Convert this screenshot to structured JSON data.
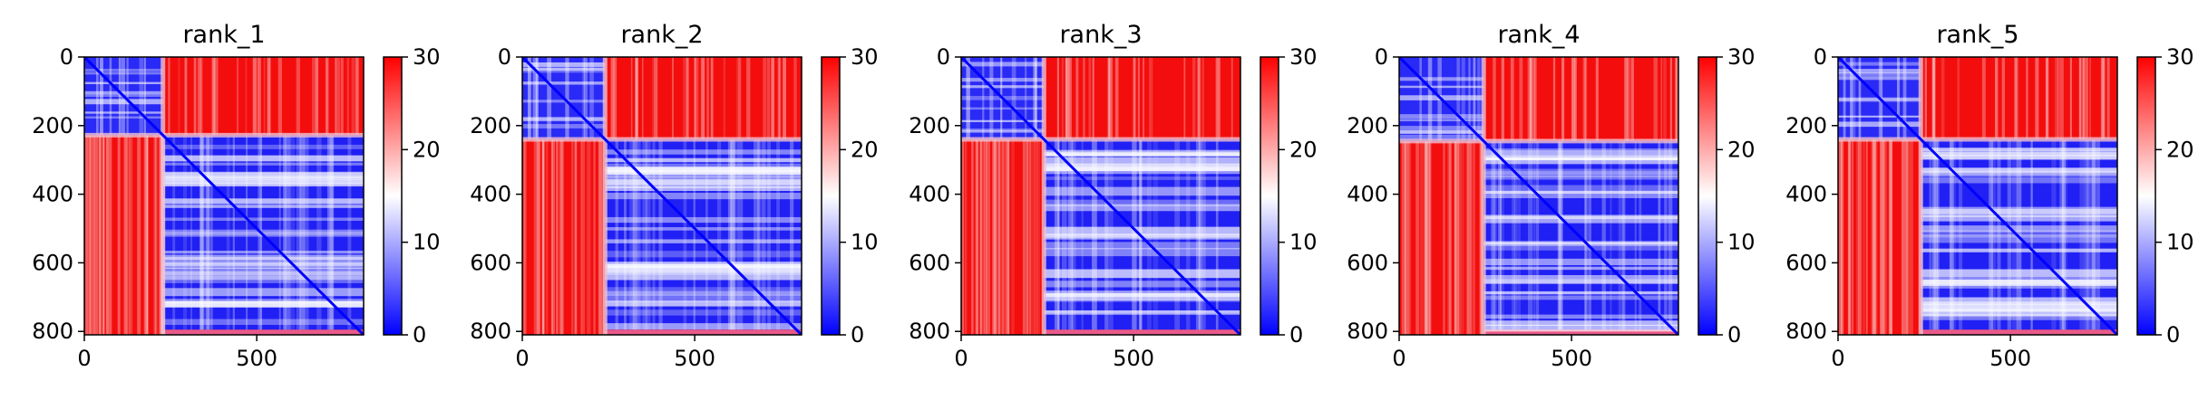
{
  "chart_data": [
    {
      "type": "heatmap",
      "title": "rank_1",
      "xlim": [
        0,
        810
      ],
      "ylim": [
        810,
        0
      ],
      "xticks": [
        0,
        500
      ],
      "yticks": [
        0,
        200,
        400,
        600,
        800
      ],
      "colorbar": {
        "range": [
          0,
          30
        ],
        "ticks": [
          0,
          10,
          20,
          30
        ],
        "colormap": [
          "#0000ff",
          "#ffffff",
          "#ff0000"
        ]
      },
      "block_boundary": 228,
      "lower_right_rows_end": 795,
      "blocks": {
        "upper_left": "low",
        "lower_right": "low",
        "off_diagonal": "high"
      }
    },
    {
      "type": "heatmap",
      "title": "rank_2",
      "xlim": [
        0,
        810
      ],
      "ylim": [
        810,
        0
      ],
      "xticks": [
        0,
        500
      ],
      "yticks": [
        0,
        200,
        400,
        600,
        800
      ],
      "colorbar": {
        "range": [
          0,
          30
        ],
        "ticks": [
          0,
          10,
          20,
          30
        ],
        "colormap": [
          "#0000ff",
          "#ffffff",
          "#ff0000"
        ]
      },
      "block_boundary": 240,
      "lower_right_rows_end": 795,
      "blocks": {
        "upper_left": "low",
        "lower_right": "low",
        "off_diagonal": "high"
      }
    },
    {
      "type": "heatmap",
      "title": "rank_3",
      "xlim": [
        0,
        810
      ],
      "ylim": [
        810,
        0
      ],
      "xticks": [
        0,
        500
      ],
      "yticks": [
        0,
        200,
        400,
        600,
        800
      ],
      "colorbar": {
        "range": [
          0,
          30
        ],
        "ticks": [
          0,
          10,
          20,
          30
        ],
        "colormap": [
          "#0000ff",
          "#ffffff",
          "#ff0000"
        ]
      },
      "block_boundary": 240,
      "lower_right_rows_end": 795,
      "blocks": {
        "upper_left": "low",
        "lower_right": "low",
        "off_diagonal": "high"
      }
    },
    {
      "type": "heatmap",
      "title": "rank_4",
      "xlim": [
        0,
        810
      ],
      "ylim": [
        810,
        0
      ],
      "xticks": [
        0,
        500
      ],
      "yticks": [
        0,
        200,
        400,
        600,
        800
      ],
      "colorbar": {
        "range": [
          0,
          30
        ],
        "ticks": [
          0,
          10,
          20,
          30
        ],
        "colormap": [
          "#0000ff",
          "#ffffff",
          "#ff0000"
        ]
      },
      "block_boundary": 245,
      "lower_right_rows_end": 795,
      "blocks": {
        "upper_left": "low",
        "lower_right": "low",
        "off_diagonal": "high"
      }
    },
    {
      "type": "heatmap",
      "title": "rank_5",
      "xlim": [
        0,
        810
      ],
      "ylim": [
        810,
        0
      ],
      "xticks": [
        0,
        500
      ],
      "yticks": [
        0,
        200,
        400,
        600,
        800
      ],
      "colorbar": {
        "range": [
          0,
          30
        ],
        "ticks": [
          0,
          10,
          20,
          30
        ],
        "colormap": [
          "#0000ff",
          "#ffffff",
          "#ff0000"
        ]
      },
      "block_boundary": 240,
      "lower_right_rows_end": 795,
      "blocks": {
        "upper_left": "low",
        "lower_right": "low",
        "off_diagonal": "high"
      }
    }
  ]
}
